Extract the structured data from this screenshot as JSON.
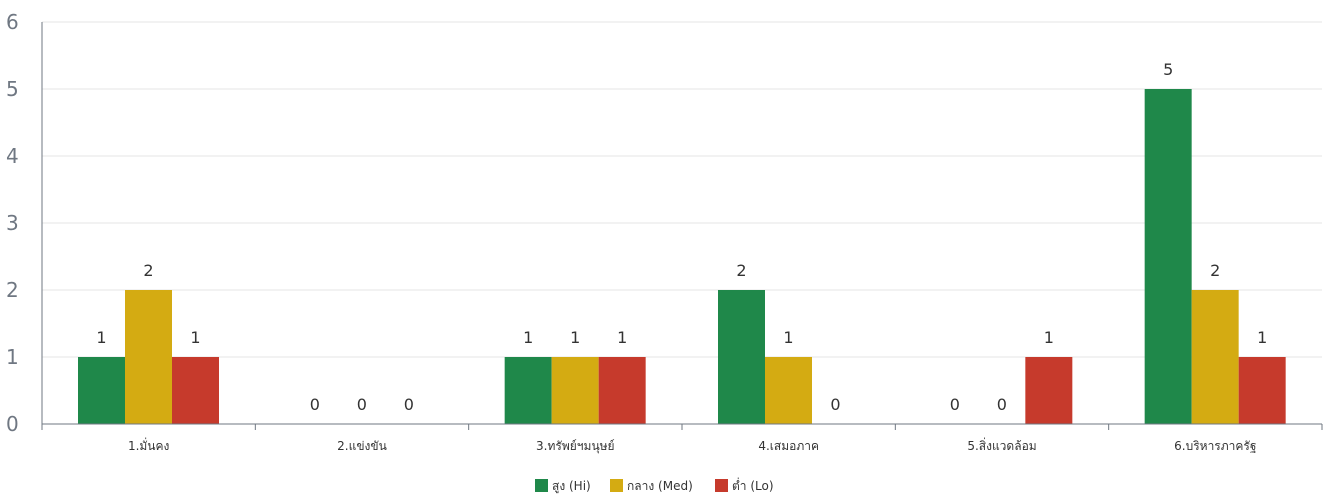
{
  "chart_data": {
    "type": "bar",
    "categories": [
      "1.มั่นคง",
      "2.แข่งขัน",
      "3.ทรัพย์ฯมนุษย์",
      "4.เสมอภาค",
      "5.สิ่งแวดล้อม",
      "6.บริหารภาครัฐ"
    ],
    "series": [
      {
        "name": "สูง (Hi)",
        "color": "#1f884a",
        "values": [
          1,
          0,
          1,
          2,
          0,
          5
        ]
      },
      {
        "name": "กลาง (Med)",
        "color": "#d4ab12",
        "values": [
          2,
          0,
          1,
          1,
          0,
          2
        ]
      },
      {
        "name": "ต่ำ (Lo)",
        "color": "#c63a2c",
        "values": [
          1,
          0,
          1,
          0,
          1,
          1
        ]
      }
    ],
    "ylim": [
      0,
      6
    ],
    "yticks": [
      0,
      1,
      2,
      3,
      4,
      5,
      6
    ],
    "grid": true,
    "legend_position": "bottom-center",
    "data_labels": true
  }
}
